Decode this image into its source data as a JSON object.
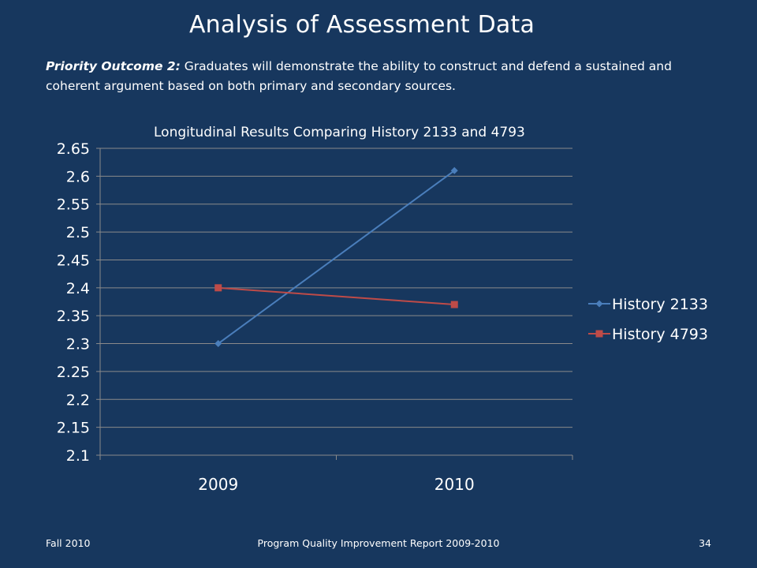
{
  "slide": {
    "title": "Analysis of Assessment Data",
    "outcome_lead": "Priority Outcome 2:",
    "outcome_text": " Graduates will demonstrate the ability to construct and defend a sustained and coherent argument based on both primary and secondary sources."
  },
  "chart_data": {
    "type": "line",
    "title": "Longitudinal Results Comparing History 2133 and 4793",
    "categories": [
      "2009",
      "2010"
    ],
    "series": [
      {
        "name": "History 2133",
        "values": [
          2.3,
          2.61
        ],
        "color": "#4a7ebb",
        "marker": "diamond"
      },
      {
        "name": "History 4793",
        "values": [
          2.4,
          2.37
        ],
        "color": "#be4b48",
        "marker": "square"
      }
    ],
    "ylim": [
      2.1,
      2.65
    ],
    "yticks": [
      "2.65",
      "2.6",
      "2.55",
      "2.5",
      "2.45",
      "2.4",
      "2.35",
      "2.3",
      "2.25",
      "2.2",
      "2.15",
      "2.1"
    ],
    "grid": true,
    "legend": "right",
    "xlabel": "",
    "ylabel": ""
  },
  "footer": {
    "left": "Fall 2010",
    "center": "Program Quality Improvement Report 2009-2010",
    "right": "34"
  }
}
